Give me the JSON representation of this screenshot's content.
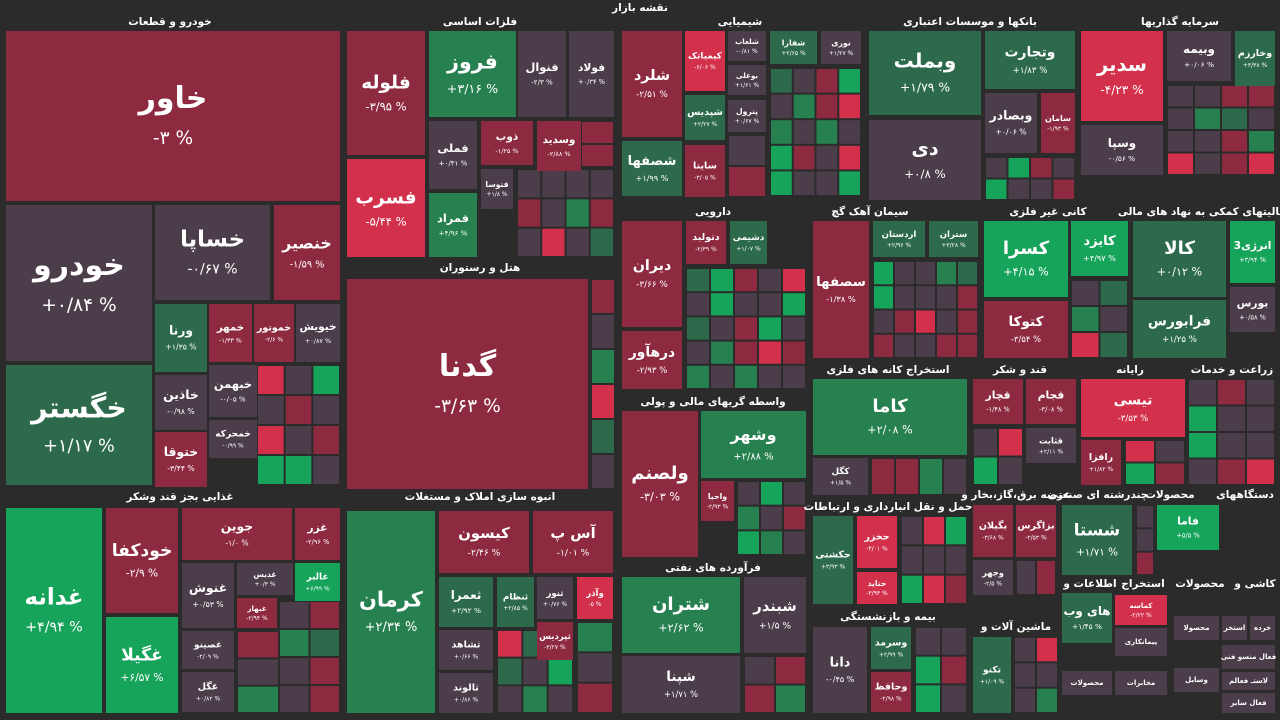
{
  "title": "نقشه بازار",
  "sectors": [
    {
      "title": "خودرو و قطعات",
      "tiles": [
        {
          "name": "خاور",
          "change": "-۳ %"
        },
        {
          "name": "خودرو",
          "change": "+۰/۸۴ %"
        },
        {
          "name": "خگستر",
          "change": "+۱/۱۷ %"
        },
        {
          "name": "خساپا",
          "change": "-۰/۶۷ %"
        },
        {
          "name": "خنصیر",
          "change": "-۱/۵۹ %"
        },
        {
          "name": "خیویش",
          "change": "+۰/۸۷ %"
        },
        {
          "name": "خموتور",
          "change": "-۲/۶ %"
        },
        {
          "name": "خمهر",
          "change": "-۱/۳۳ %"
        },
        {
          "name": "ورنا",
          "change": "+۱/۳۵ %"
        },
        {
          "name": "خاذین",
          "change": "-۰/۹۸ %"
        },
        {
          "name": "ختوقا",
          "change": "-۳/۴۴ %"
        },
        {
          "name": "خبهمن",
          "change": "-۰/۰۵ %"
        },
        {
          "name": "خمحرکه",
          "change": "-۰/۹۹ %"
        }
      ]
    },
    {
      "title": "فلزات اساسی",
      "tiles": [
        {
          "name": "فلوله",
          "change": "-۳/۹۵ %"
        },
        {
          "name": "فسرب",
          "change": "-۵/۴۴ %"
        },
        {
          "name": "فروز",
          "change": "+۳/۱۶ %"
        },
        {
          "name": "فولاد",
          "change": "+۰/۳۴ %"
        },
        {
          "name": "فنوال",
          "change": "-۲/۳ %"
        },
        {
          "name": "فملی",
          "change": "+۰/۴۱ %"
        },
        {
          "name": "ذوب",
          "change": "-۱/۲۵ %"
        },
        {
          "name": "وسدید",
          "change": "-۲/۸۸ %"
        },
        {
          "name": "فتوسا",
          "change": "+۱/۸ %"
        },
        {
          "name": "فمراد",
          "change": "+۴/۹۶ %"
        }
      ]
    },
    {
      "title": "هتل و رستوران",
      "tiles": [
        {
          "name": "گدنا",
          "change": "-۳/۶۳ %"
        }
      ]
    },
    {
      "title": "شیمیایی",
      "tiles": [
        {
          "name": "شلرد",
          "change": "-۲/۵۱ %"
        },
        {
          "name": "شصفها",
          "change": "+۱/۹۹ %"
        },
        {
          "name": "کیمیاتک",
          "change": "-۶/۰۶ %"
        },
        {
          "name": "شلعاب",
          "change": "-۰/۸۱ %"
        },
        {
          "name": "شفارا",
          "change": "+۲/۶۵ %"
        },
        {
          "name": "نوری",
          "change": "+۱/۲۷ %"
        },
        {
          "name": "بوعلی",
          "change": "+۱/۶۱ %"
        },
        {
          "name": "شپدیس",
          "change": "+۲/۲۷ %"
        },
        {
          "name": "پترول",
          "change": "+۰/۶۷ %"
        },
        {
          "name": "ساینا",
          "change": "-۳/۰۵ %"
        }
      ]
    },
    {
      "title": "بانکها و موسسات اعتباری",
      "tiles": [
        {
          "name": "وبملت",
          "change": "+۱/۷۹ %"
        },
        {
          "name": "دی",
          "change": "+۰/۸ %"
        },
        {
          "name": "وتجارت",
          "change": "+۱/۸۳ %"
        },
        {
          "name": "وبصادر",
          "change": "+۰/۰۶ %"
        },
        {
          "name": "سامان",
          "change": "-۱/۹۳ %"
        }
      ]
    },
    {
      "title": "سرمایه گذاریها",
      "tiles": [
        {
          "name": "سدیر",
          "change": "-۴/۲۳ %"
        },
        {
          "name": "وسپا",
          "change": "-۰/۵۶ %"
        },
        {
          "name": "وبیمه",
          "change": "+۰/۰۶ %"
        },
        {
          "name": "وخارزم",
          "change": "+۳/۳۸ %"
        }
      ]
    },
    {
      "title": "دارویی",
      "tiles": [
        {
          "name": "دیران",
          "change": "-۳/۶۶ %"
        },
        {
          "name": "درهآور",
          "change": "-۲/۹۳ %"
        },
        {
          "name": "دتولید",
          "change": "-۲/۳۹ %"
        },
        {
          "name": "دشیمی",
          "change": "+۱/۰۷ %"
        }
      ]
    },
    {
      "title": "سیمان آهک گچ",
      "tiles": [
        {
          "name": "سصفها",
          "change": "-۱/۳۸ %"
        },
        {
          "name": "اردستان",
          "change": "+۲/۹۶ %"
        },
        {
          "name": "ستران",
          "change": "+۳/۲۸ %"
        }
      ]
    },
    {
      "title": "کانی غیر فلزی",
      "tiles": [
        {
          "name": "کسرا",
          "change": "+۴/۱۵ %"
        },
        {
          "name": "کایزد",
          "change": "+۴/۹۷ %"
        },
        {
          "name": "کتوکا",
          "change": "-۳/۵۴ %"
        }
      ]
    },
    {
      "title": "فعالیتهای کمکی به نهاد های مالی",
      "tiles": [
        {
          "name": "کالا",
          "change": "+۰/۱۲ %"
        },
        {
          "name": "فرابورس",
          "change": "+۱/۲۵ %"
        },
        {
          "name": "انرژی3",
          "change": "+۳/۹۴ %"
        },
        {
          "name": "بورس",
          "change": "+۰/۵۸ %"
        }
      ]
    },
    {
      "title": "واسطه گریهای مالی و پولی",
      "tiles": [
        {
          "name": "ولصنم",
          "change": "-۳/۰۳ %"
        },
        {
          "name": "وشهر",
          "change": "+۲/۸۸ %"
        },
        {
          "name": "واحیا",
          "change": "-۲/۹۳ %"
        }
      ]
    },
    {
      "title": "استخراج کانه های فلزی",
      "tiles": [
        {
          "name": "کاما",
          "change": "+۲/۰۸ %"
        },
        {
          "name": "کگل",
          "change": "+۱/۵ %"
        }
      ]
    },
    {
      "title": "قند و شکر",
      "tiles": [
        {
          "name": "قچار",
          "change": "-۱/۴۸ %"
        },
        {
          "name": "قجام",
          "change": "-۳/۰۸ %"
        },
        {
          "name": "قثابت",
          "change": "+۲/۱۱ %"
        }
      ]
    },
    {
      "title": "رایانه",
      "tiles": [
        {
          "name": "تیسی",
          "change": "-۳/۵۳ %"
        },
        {
          "name": "رافزا",
          "change": "+۱/۸۲ %"
        }
      ]
    },
    {
      "title": "زراعت و خدمات",
      "tiles": []
    },
    {
      "title": "غذایی بجز قند وشکر",
      "tiles": [
        {
          "name": "غدانه",
          "change": "+۴/۹۴ %"
        },
        {
          "name": "خودکفا",
          "change": "-۲/۹ %"
        },
        {
          "name": "غگیلا",
          "change": "+۶/۵۷ %"
        },
        {
          "name": "جوین",
          "change": "-۱/۰ %"
        },
        {
          "name": "غزر",
          "change": "-۲/۹۶ %"
        },
        {
          "name": "غنوش",
          "change": "+۰/۵۳ %"
        },
        {
          "name": "غدیس",
          "change": "+۰/۳ %"
        },
        {
          "name": "غالبر",
          "change": "+۶/۹۹ %"
        },
        {
          "name": "غبهار",
          "change": "-۲/۹۴ %"
        },
        {
          "name": "غصینو",
          "change": "-۲/۰۹ %"
        },
        {
          "name": "غگل",
          "change": "+۰/۸۲ %"
        }
      ]
    },
    {
      "title": "انبوه سازی املاک و مستغلات",
      "tiles": [
        {
          "name": "کرمان",
          "change": "+۲/۳۴ %"
        },
        {
          "name": "کیسون",
          "change": "-۲/۴۶ %"
        },
        {
          "name": "آس پ",
          "change": "-۱/۰۱ %"
        },
        {
          "name": "ثعمرا",
          "change": "+۲/۹۲ %"
        },
        {
          "name": "ثنظام",
          "change": "+۲/۸۵ %"
        },
        {
          "name": "ثنور",
          "change": "+۰/۷۶ %"
        },
        {
          "name": "وآذر",
          "change": "-۵ %"
        },
        {
          "name": "ثپردیس",
          "change": "-۳/۲۷ %"
        },
        {
          "name": "ثشاهد",
          "change": "+۰/۶۶ %"
        },
        {
          "name": "ثالوند",
          "change": "+۰/۸۶ %"
        }
      ]
    },
    {
      "title": "فرآورده های نفتی",
      "tiles": [
        {
          "name": "شتران",
          "change": "+۲/۶۲ %"
        },
        {
          "name": "شبندر",
          "change": "+۱/۵ %"
        },
        {
          "name": "شپنا",
          "change": "+۱/۷۱ %"
        }
      ]
    },
    {
      "title": "حمل و نقل انبارداری و ارتباطات",
      "tiles": [
        {
          "name": "حکشتی",
          "change": "+۳/۹۳ %"
        },
        {
          "name": "حخزر",
          "change": "-۴/۰۱ %"
        },
        {
          "name": "حتاید",
          "change": "-۳/۹۳ %"
        }
      ]
    },
    {
      "title": "بیمه و بازنشستگی",
      "tiles": [
        {
          "name": "دانا",
          "change": "-۰/۴۵ %"
        },
        {
          "name": "وسرمد",
          "change": "+۲/۹۹ %"
        },
        {
          "name": "وحافظ",
          "change": "-۲/۹۸ %"
        }
      ]
    },
    {
      "title": "عرضه برق،گاز،بخار و",
      "tiles": [
        {
          "name": "بگیلان",
          "change": "-۳/۶۸ %"
        },
        {
          "name": "وجهر",
          "change": "-۲/۵ %"
        },
        {
          "name": "بزاگرس",
          "change": "-۲/۵۳ %"
        }
      ]
    },
    {
      "title": "ماشین آلات و",
      "tiles": [
        {
          "name": "تکنو",
          "change": "+۱/۰۹ %"
        }
      ]
    },
    {
      "title": "چندرشته ای صنعتی",
      "tiles": [
        {
          "name": "شستا",
          "change": "+۱/۷۱ %"
        }
      ]
    },
    {
      "title": "محصولات",
      "tiles": [
        {
          "name": "فاما",
          "change": "+۵/۵ %"
        }
      ]
    },
    {
      "title": "دستگاههای",
      "tiles": []
    },
    {
      "title": "اطلاعات و",
      "tiles": [
        {
          "name": "های وب",
          "change": "+۱/۴۵ %"
        },
        {
          "name": "محصولات"
        }
      ]
    },
    {
      "title": "استخراج",
      "tiles": [
        {
          "name": "کماسه",
          "change": "-۲/۲۲ %"
        },
        {
          "name": "پیمانکاری"
        },
        {
          "name": "مخابرات"
        }
      ]
    },
    {
      "title": "محصولات",
      "tiles": [
        {
          "name": "محصولا"
        },
        {
          "name": "وسایل"
        }
      ]
    },
    {
      "title": "کاشی و",
      "tiles": [
        {
          "name": "استخر"
        },
        {
          "name": "خرده"
        },
        {
          "name": "فعال منسو فنی"
        },
        {
          "name": "لاستـ فعالم"
        },
        {
          "name": "فعال سایر"
        }
      ]
    }
  ]
}
